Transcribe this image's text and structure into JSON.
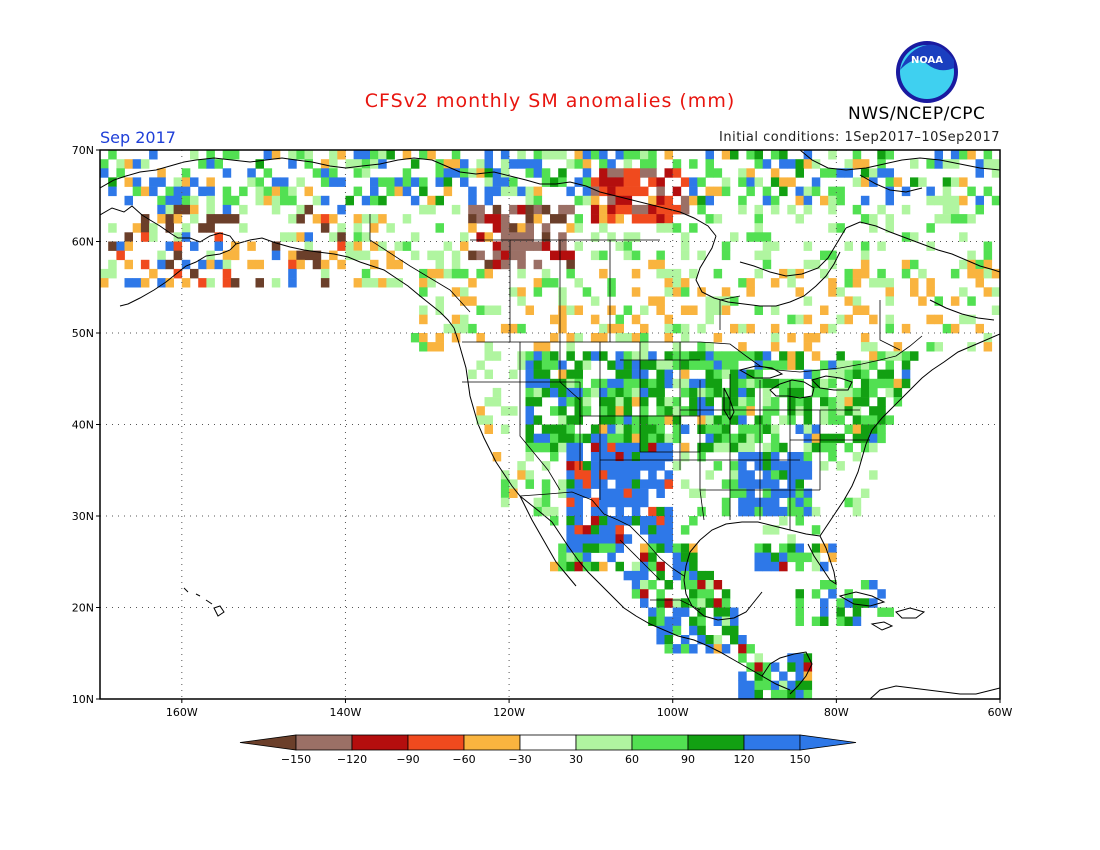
{
  "header": {
    "title": "CFSv2 monthly SM anomalies (mm)",
    "agency": "NWS/NCEP/CPC",
    "valid_month": "Sep 2017",
    "initial_conditions": "Initial conditions: 1Sep2017–10Sep2017",
    "logo_text": "NOAA"
  },
  "map": {
    "lat_ticks": [
      "70N",
      "60N",
      "50N",
      "40N",
      "30N",
      "20N",
      "10N"
    ],
    "lon_ticks": [
      "160W",
      "140W",
      "120W",
      "100W",
      "80W",
      "60W"
    ]
  },
  "legend": {
    "colors": [
      "#6b3f2a",
      "#9b7066",
      "#b40e0e",
      "#f04a1e",
      "#f9b43f",
      "#ffffff",
      "#b0f5a0",
      "#52e052",
      "#12a012",
      "#2e78e8"
    ],
    "tick_labels": [
      "−150",
      "−120",
      "−90",
      "−60",
      "−30",
      "30",
      "60",
      "90",
      "120",
      "150"
    ]
  }
}
